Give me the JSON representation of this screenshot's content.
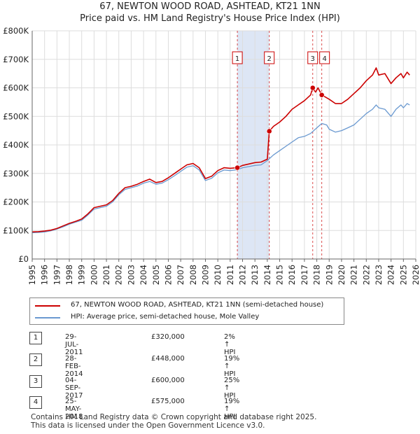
{
  "title_line1": "67, NEWTON WOOD ROAD, ASHTEAD, KT21 1NN",
  "title_line2": "Price paid vs. HM Land Registry's House Price Index (HPI)",
  "chart_data": {
    "type": "line",
    "title": "67, NEWTON WOOD ROAD, ASHTEAD, KT21 1NN — Price paid vs. HM Land Registry's House Price Index (HPI)",
    "xlabel": "",
    "ylabel": "",
    "xlim": [
      1995,
      2026
    ],
    "ylim": [
      0,
      800000
    ],
    "x_ticks": [
      1995,
      1996,
      1997,
      1998,
      1999,
      2000,
      2001,
      2002,
      2003,
      2004,
      2005,
      2006,
      2007,
      2008,
      2009,
      2010,
      2011,
      2012,
      2013,
      2014,
      2015,
      2016,
      2017,
      2018,
      2019,
      2020,
      2021,
      2022,
      2023,
      2024,
      2025,
      2026
    ],
    "y_ticks": [
      {
        "value": 0,
        "label": "£0"
      },
      {
        "value": 100000,
        "label": "£100K"
      },
      {
        "value": 200000,
        "label": "£200K"
      },
      {
        "value": 300000,
        "label": "£300K"
      },
      {
        "value": 400000,
        "label": "£400K"
      },
      {
        "value": 500000,
        "label": "£500K"
      },
      {
        "value": 600000,
        "label": "£600K"
      },
      {
        "value": 700000,
        "label": "£700K"
      },
      {
        "value": 800000,
        "label": "£800K"
      }
    ],
    "grid": true,
    "series": [
      {
        "name": "67, NEWTON WOOD ROAD, ASHTEAD, KT21 1NN (semi-detached house)",
        "color": "#cc0000",
        "points": [
          [
            1995.0,
            95000
          ],
          [
            1995.5,
            96000
          ],
          [
            1996.0,
            98000
          ],
          [
            1996.5,
            101000
          ],
          [
            1997.0,
            107000
          ],
          [
            1997.5,
            116000
          ],
          [
            1998.0,
            125000
          ],
          [
            1998.5,
            132000
          ],
          [
            1999.0,
            140000
          ],
          [
            1999.5,
            158000
          ],
          [
            2000.0,
            180000
          ],
          [
            2000.5,
            185000
          ],
          [
            2001.0,
            190000
          ],
          [
            2001.5,
            205000
          ],
          [
            2002.0,
            230000
          ],
          [
            2002.5,
            250000
          ],
          [
            2003.0,
            255000
          ],
          [
            2003.5,
            262000
          ],
          [
            2004.0,
            272000
          ],
          [
            2004.5,
            280000
          ],
          [
            2005.0,
            268000
          ],
          [
            2005.5,
            272000
          ],
          [
            2006.0,
            285000
          ],
          [
            2006.5,
            300000
          ],
          [
            2007.0,
            315000
          ],
          [
            2007.5,
            330000
          ],
          [
            2008.0,
            335000
          ],
          [
            2008.5,
            320000
          ],
          [
            2009.0,
            282000
          ],
          [
            2009.5,
            290000
          ],
          [
            2010.0,
            310000
          ],
          [
            2010.5,
            320000
          ],
          [
            2011.0,
            318000
          ],
          [
            2011.58,
            320000
          ],
          [
            2012.0,
            328000
          ],
          [
            2012.5,
            333000
          ],
          [
            2013.0,
            338000
          ],
          [
            2013.5,
            340000
          ],
          [
            2014.0,
            350000
          ],
          [
            2014.16,
            448000
          ],
          [
            2014.5,
            465000
          ],
          [
            2015.0,
            480000
          ],
          [
            2015.5,
            500000
          ],
          [
            2016.0,
            525000
          ],
          [
            2016.5,
            540000
          ],
          [
            2017.0,
            555000
          ],
          [
            2017.5,
            575000
          ],
          [
            2017.67,
            600000
          ],
          [
            2017.9,
            585000
          ],
          [
            2018.1,
            600000
          ],
          [
            2018.4,
            575000
          ],
          [
            2018.6,
            570000
          ],
          [
            2019.0,
            560000
          ],
          [
            2019.5,
            545000
          ],
          [
            2020.0,
            545000
          ],
          [
            2020.5,
            560000
          ],
          [
            2021.0,
            580000
          ],
          [
            2021.5,
            600000
          ],
          [
            2022.0,
            625000
          ],
          [
            2022.5,
            645000
          ],
          [
            2022.8,
            670000
          ],
          [
            2023.0,
            645000
          ],
          [
            2023.5,
            650000
          ],
          [
            2024.0,
            615000
          ],
          [
            2024.4,
            635000
          ],
          [
            2024.8,
            650000
          ],
          [
            2025.0,
            635000
          ],
          [
            2025.3,
            655000
          ],
          [
            2025.5,
            645000
          ]
        ]
      },
      {
        "name": "HPI: Average price, semi-detached house, Mole Valley",
        "color": "#6a99d0",
        "points": [
          [
            1995.0,
            92000
          ],
          [
            1995.5,
            93000
          ],
          [
            1996.0,
            95000
          ],
          [
            1996.5,
            99000
          ],
          [
            1997.0,
            105000
          ],
          [
            1997.5,
            113000
          ],
          [
            1998.0,
            122000
          ],
          [
            1998.5,
            129000
          ],
          [
            1999.0,
            136000
          ],
          [
            1999.5,
            154000
          ],
          [
            2000.0,
            175000
          ],
          [
            2000.5,
            180000
          ],
          [
            2001.0,
            185000
          ],
          [
            2001.5,
            200000
          ],
          [
            2002.0,
            225000
          ],
          [
            2002.5,
            244000
          ],
          [
            2003.0,
            250000
          ],
          [
            2003.5,
            256000
          ],
          [
            2004.0,
            266000
          ],
          [
            2004.5,
            272000
          ],
          [
            2005.0,
            262000
          ],
          [
            2005.5,
            266000
          ],
          [
            2006.0,
            278000
          ],
          [
            2006.5,
            292000
          ],
          [
            2007.0,
            307000
          ],
          [
            2007.5,
            322000
          ],
          [
            2008.0,
            327000
          ],
          [
            2008.5,
            312000
          ],
          [
            2009.0,
            275000
          ],
          [
            2009.5,
            283000
          ],
          [
            2010.0,
            302000
          ],
          [
            2010.5,
            312000
          ],
          [
            2011.0,
            310000
          ],
          [
            2011.58,
            313000
          ],
          [
            2012.0,
            320000
          ],
          [
            2012.5,
            324000
          ],
          [
            2013.0,
            328000
          ],
          [
            2013.5,
            330000
          ],
          [
            2014.0,
            345000
          ],
          [
            2014.5,
            365000
          ],
          [
            2015.0,
            380000
          ],
          [
            2015.5,
            395000
          ],
          [
            2016.0,
            410000
          ],
          [
            2016.5,
            425000
          ],
          [
            2017.0,
            430000
          ],
          [
            2017.5,
            440000
          ],
          [
            2018.0,
            460000
          ],
          [
            2018.4,
            475000
          ],
          [
            2018.8,
            470000
          ],
          [
            2019.0,
            455000
          ],
          [
            2019.5,
            445000
          ],
          [
            2020.0,
            450000
          ],
          [
            2020.5,
            460000
          ],
          [
            2021.0,
            470000
          ],
          [
            2021.5,
            490000
          ],
          [
            2022.0,
            510000
          ],
          [
            2022.5,
            525000
          ],
          [
            2022.8,
            540000
          ],
          [
            2023.0,
            530000
          ],
          [
            2023.5,
            525000
          ],
          [
            2024.0,
            500000
          ],
          [
            2024.4,
            525000
          ],
          [
            2024.8,
            540000
          ],
          [
            2025.0,
            530000
          ],
          [
            2025.3,
            545000
          ],
          [
            2025.5,
            540000
          ]
        ]
      }
    ],
    "sales": [
      {
        "id": "1",
        "x": 2011.58,
        "price": 320000
      },
      {
        "id": "2",
        "x": 2014.16,
        "price": 448000
      },
      {
        "id": "3",
        "x": 2017.67,
        "price": 600000
      },
      {
        "id": "4",
        "x": 2018.4,
        "price": 575000
      }
    ],
    "shaded_range": [
      2011.58,
      2014.16
    ],
    "colors": {
      "property": "#cc0000",
      "hpi": "#6a99d0",
      "shade": "#dde6f5",
      "grid": "#dddddd"
    }
  },
  "legend": {
    "property_label": "67, NEWTON WOOD ROAD, ASHTEAD, KT21 1NN (semi-detached house)",
    "hpi_label": "HPI: Average price, semi-detached house, Mole Valley"
  },
  "sales_table": [
    {
      "num": "1",
      "date": "29-JUL-2011",
      "price": "£320,000",
      "hpi": "2% ↑ HPI"
    },
    {
      "num": "2",
      "date": "28-FEB-2014",
      "price": "£448,000",
      "hpi": "19% ↑ HPI"
    },
    {
      "num": "3",
      "date": "04-SEP-2017",
      "price": "£600,000",
      "hpi": "25% ↑ HPI"
    },
    {
      "num": "4",
      "date": "25-MAY-2018",
      "price": "£575,000",
      "hpi": "19% ↑ HPI"
    }
  ],
  "footer": {
    "line1": "Contains HM Land Registry data © Crown copyright and database right 2025.",
    "line2": "This data is licensed under the Open Government Licence v3.0."
  }
}
